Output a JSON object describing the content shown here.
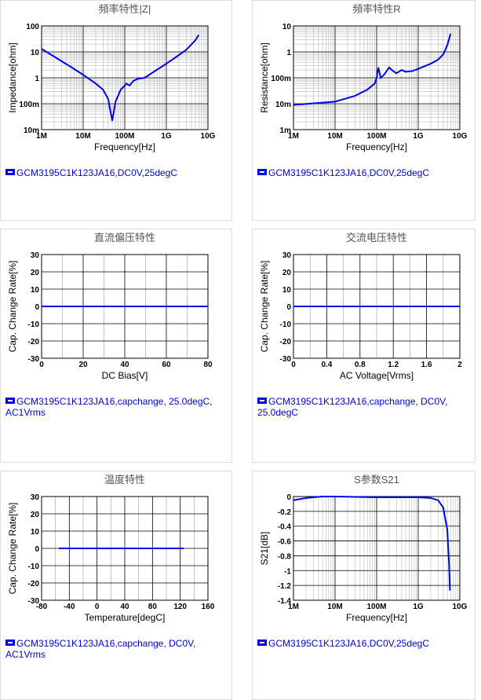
{
  "chart_data": [
    {
      "type": "line",
      "title": "頻率特性|Z|",
      "x_label": "Frequency[Hz]",
      "y_label": "Impedance[ohm]",
      "xlog": true,
      "ylog": true,
      "grid": true,
      "minor_grid": true,
      "xlim": [
        1000000,
        10000000000
      ],
      "ylim": [
        0.01,
        100
      ],
      "xticks": [
        {
          "value": 1000000,
          "label": "1M"
        },
        {
          "value": 10000000,
          "label": "10M"
        },
        {
          "value": 100000000,
          "label": "100M"
        },
        {
          "value": 1000000000,
          "label": "1G"
        },
        {
          "value": 10000000000,
          "label": "10G"
        }
      ],
      "yticks": [
        {
          "value": 0.01,
          "label": "10m"
        },
        {
          "value": 0.1,
          "label": "100m"
        },
        1,
        10,
        100
      ],
      "x": [
        1000000,
        2000000,
        5000000,
        10000000,
        20000000,
        30000000,
        40000000,
        50000000,
        60000000,
        80000000,
        100000000,
        110000000,
        130000000,
        160000000,
        200000000,
        300000000,
        500000000,
        1000000000,
        2000000000,
        3000000000,
        5000000000,
        6000000000
      ],
      "series": [
        {
          "name": "GCM3195C1K123JA16,DC0V,25degC",
          "color": "#0000ee",
          "values": [
            13,
            6.6,
            2.65,
            1.3,
            0.6,
            0.35,
            0.15,
            0.022,
            0.12,
            0.35,
            0.5,
            0.6,
            0.5,
            0.75,
            0.9,
            1.0,
            1.7,
            3.5,
            7.5,
            12,
            28,
            45
          ]
        }
      ]
    },
    {
      "type": "line",
      "title": "頻率特性R",
      "x_label": "Frequency[Hz]",
      "y_label": "Resistance[ohm]",
      "xlog": true,
      "ylog": true,
      "grid": true,
      "minor_grid": true,
      "xlim": [
        1000000,
        10000000000
      ],
      "ylim": [
        0.001,
        10
      ],
      "xticks": [
        {
          "value": 1000000,
          "label": "1M"
        },
        {
          "value": 10000000,
          "label": "10M"
        },
        {
          "value": 100000000,
          "label": "100M"
        },
        {
          "value": 1000000000,
          "label": "1G"
        },
        {
          "value": 10000000000,
          "label": "10G"
        }
      ],
      "yticks": [
        {
          "value": 0.001,
          "label": "1m"
        },
        {
          "value": 0.01,
          "label": "10m"
        },
        {
          "value": 0.1,
          "label": "100m"
        },
        1,
        10
      ],
      "x": [
        1000000,
        10000000,
        30000000,
        60000000,
        90000000,
        100000000,
        110000000,
        125000000,
        150000000,
        200000000,
        250000000,
        300000000,
        400000000,
        500000000,
        700000000,
        1000000000,
        2000000000,
        3000000000,
        4000000000,
        5000000000,
        6000000000
      ],
      "series": [
        {
          "name": "GCM3195C1K123JA16,DC0V,25degC",
          "color": "#0000ee",
          "values": [
            0.009,
            0.012,
            0.02,
            0.035,
            0.06,
            0.1,
            0.25,
            0.1,
            0.13,
            0.25,
            0.18,
            0.15,
            0.2,
            0.17,
            0.18,
            0.22,
            0.35,
            0.5,
            0.8,
            1.8,
            5
          ]
        }
      ]
    },
    {
      "type": "line",
      "title": "直流偏压特性",
      "x_label": "DC Bias[V]",
      "y_label": "Cap. Change Rate[%]",
      "xlog": false,
      "ylog": false,
      "grid": true,
      "minor_grid": true,
      "xlim": [
        0,
        80
      ],
      "ylim": [
        -30,
        30
      ],
      "xticks": [
        0,
        20,
        40,
        60,
        80
      ],
      "yticks": [
        -30,
        -20,
        -10,
        0,
        10,
        20,
        30
      ],
      "x": [
        0,
        80
      ],
      "series": [
        {
          "name": "GCM3195C1K123JA16,capchange, 25.0degC, AC1Vrms",
          "color": "#0000ee",
          "values": [
            0,
            0
          ]
        }
      ]
    },
    {
      "type": "line",
      "title": "交流电压特性",
      "x_label": "AC Voltage[Vrms]",
      "y_label": "Cap. Change Rate[%]",
      "xlog": false,
      "ylog": false,
      "grid": true,
      "minor_grid": true,
      "xlim": [
        0,
        2
      ],
      "ylim": [
        -30,
        30
      ],
      "xticks": [
        0,
        0.4,
        0.8,
        1.2,
        1.6,
        2
      ],
      "yticks": [
        -30,
        -20,
        -10,
        0,
        10,
        20,
        30
      ],
      "x": [
        0,
        2
      ],
      "series": [
        {
          "name": "GCM3195C1K123JA16,capchange, DC0V, 25.0degC",
          "color": "#0000ee",
          "values": [
            0,
            0
          ]
        }
      ]
    },
    {
      "type": "line",
      "title": "温度特性",
      "x_label": "Temperature[degC]",
      "y_label": "Cap. Change Rate[%]",
      "xlog": false,
      "ylog": false,
      "grid": true,
      "minor_grid": true,
      "xlim": [
        -80,
        160
      ],
      "ylim": [
        -30,
        30
      ],
      "xticks": [
        -80,
        -40,
        0,
        40,
        80,
        120,
        160
      ],
      "yticks": [
        -30,
        -20,
        -10,
        0,
        10,
        20,
        30
      ],
      "x": [
        -55,
        125
      ],
      "series": [
        {
          "name": "GCM3195C1K123JA16,capchange, DC0V, AC1Vrms",
          "color": "#0000ee",
          "values": [
            0,
            0
          ]
        }
      ]
    },
    {
      "type": "line",
      "title": "S参数S21",
      "x_label": "Frequency[Hz]",
      "y_label": "S21[dB]",
      "xlog": true,
      "ylog": false,
      "grid": true,
      "minor_grid": true,
      "xlim": [
        1000000,
        10000000000
      ],
      "ylim": [
        -1.4,
        0
      ],
      "xticks": [
        {
          "value": 1000000,
          "label": "1M"
        },
        {
          "value": 10000000,
          "label": "10M"
        },
        {
          "value": 100000000,
          "label": "100M"
        },
        {
          "value": 1000000000,
          "label": "1G"
        },
        {
          "value": 10000000000,
          "label": "10G"
        }
      ],
      "yticks": [
        0,
        -0.2,
        -0.4,
        -0.6,
        -0.8,
        -1,
        -1.2,
        -1.4
      ],
      "x": [
        1000000,
        2000000,
        5000000,
        10000000,
        100000000,
        1000000000,
        2000000000,
        3000000000,
        4000000000,
        5000000000,
        5500000000,
        5800000000
      ],
      "series": [
        {
          "name": "GCM3195C1K123JA16,DC0V,25degC",
          "color": "#0000ee",
          "values": [
            -0.05,
            -0.02,
            0,
            0,
            -0.01,
            -0.01,
            -0.02,
            -0.05,
            -0.15,
            -0.45,
            -0.9,
            -1.27
          ]
        }
      ]
    }
  ]
}
